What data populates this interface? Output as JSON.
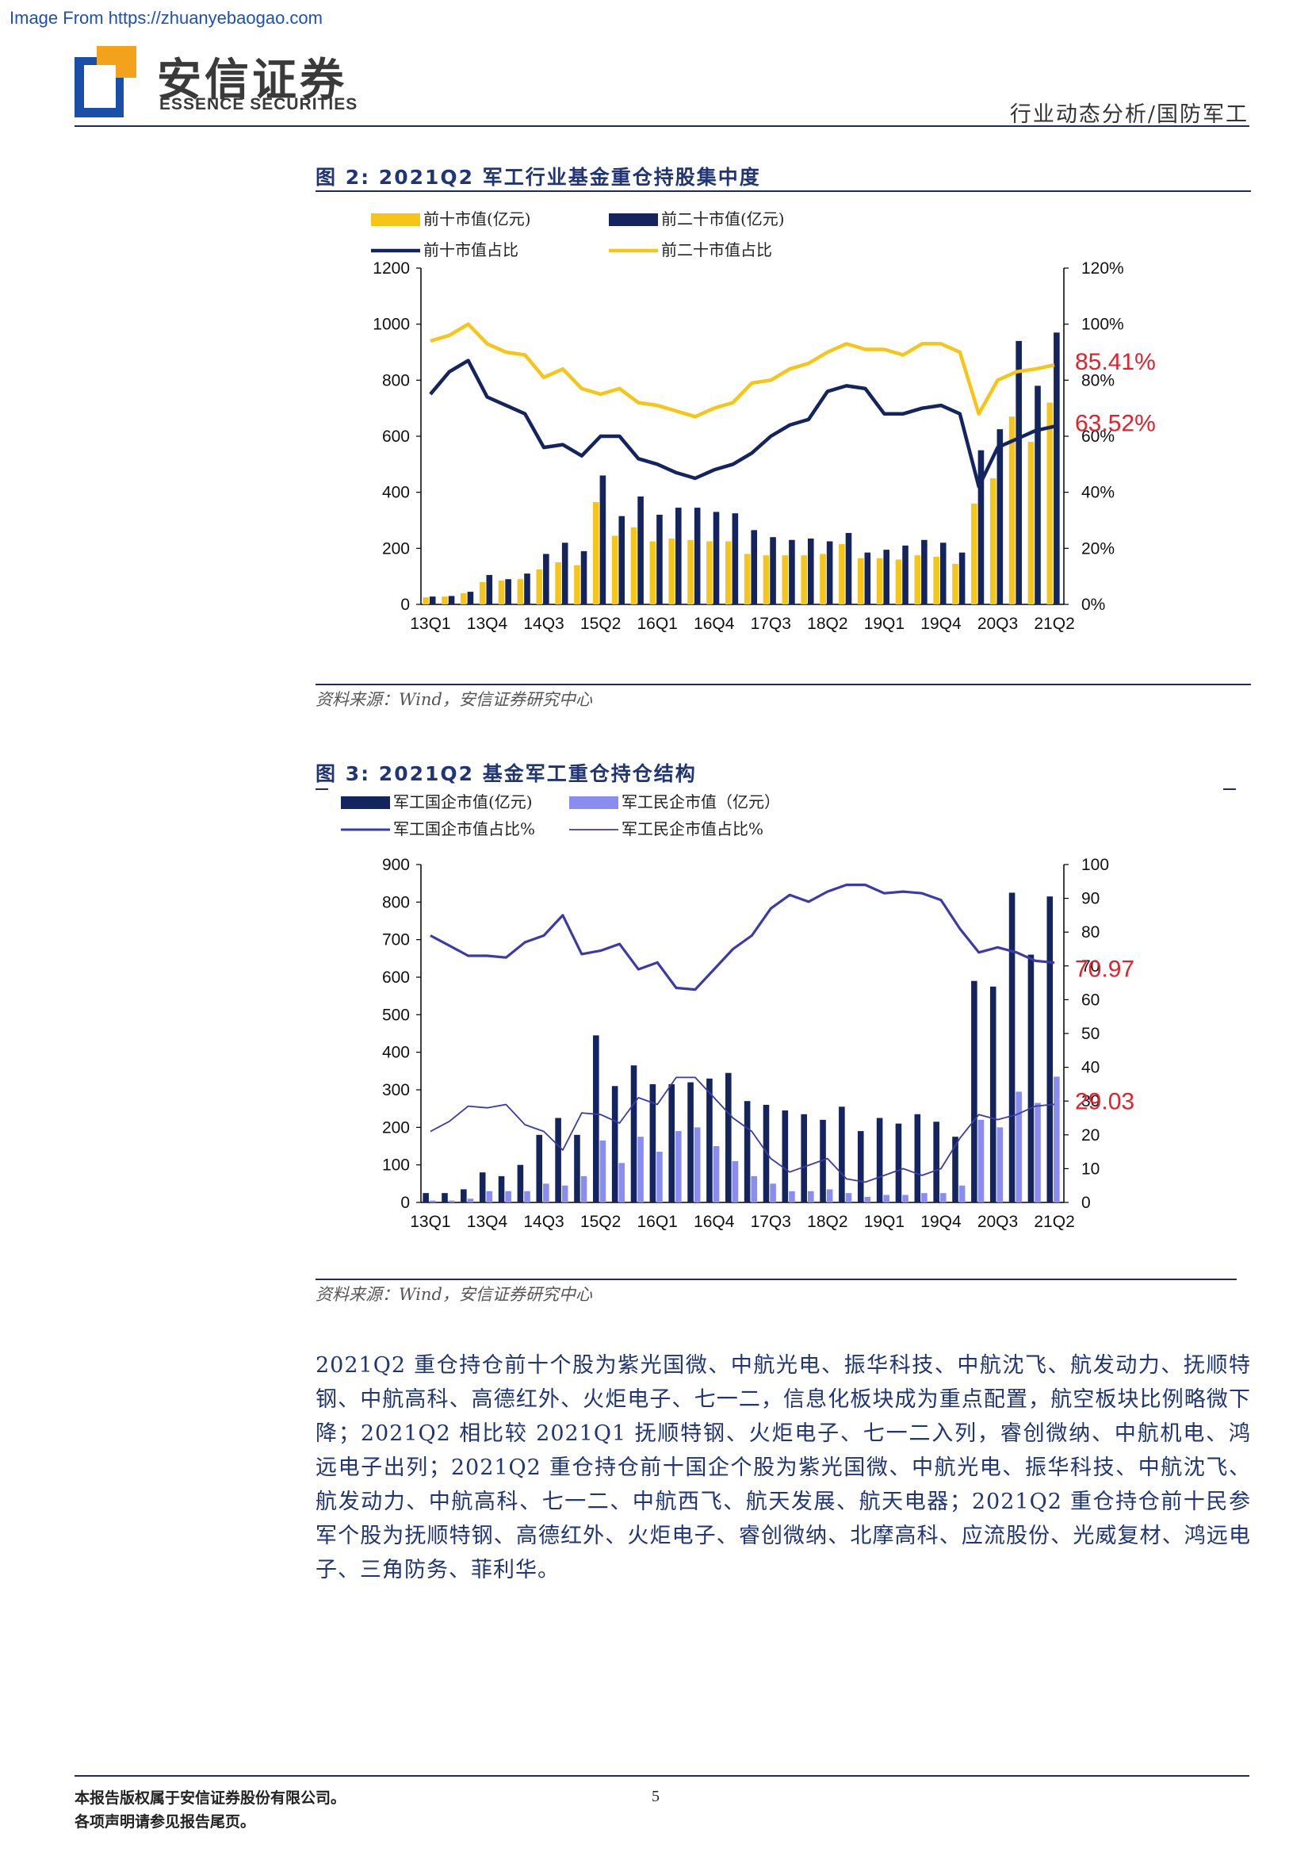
{
  "watermark": "Image From https://zhuanyebaogao.com",
  "header": {
    "logo_cn": "安信证券",
    "logo_en": "ESSENCE SECURITIES",
    "section": "行业动态分析/国防军工",
    "colors": {
      "logo_blue": "#1a4fa8",
      "logo_orange": "#f3a21b"
    }
  },
  "fig2": {
    "title": "图 2:  2021Q2 军工行业基金重仓持股集中度",
    "source": "资料来源：Wind，安信证券研究中心"
  },
  "fig3": {
    "title": "图 3:  2021Q2 基金军工重仓持仓结构",
    "source": "资料来源：Wind，安信证券研究中心"
  },
  "body": {
    "paragraph": "2021Q2 重仓持仓前十个股为紫光国微、中航光电、振华科技、中航沈飞、航发动力、抚顺特钢、中航高科、高德红外、火炬电子、七一二，信息化板块成为重点配置，航空板块比例略微下降；2021Q2 相比较 2021Q1 抚顺特钢、火炬电子、七一二入列，睿创微纳、中航机电、鸿远电子出列；2021Q2 重仓持仓前十国企个股为紫光国微、中航光电、振华科技、中航沈飞、航发动力、中航高科、七一二、中航西飞、航天发展、航天电器；2021Q2 重仓持仓前十民参军个股为抚顺特钢、高德红外、火炬电子、睿创微纳、北摩高科、应流股份、光威复材、鸿远电子、三角防务、菲利华。"
  },
  "footer": {
    "left_line1": "本报告版权属于安信证券股份有限公司。",
    "left_line2": "各项声明请参见报告尾页。",
    "page": "5"
  },
  "chart_data": [
    {
      "type": "bar",
      "id": "fig2",
      "quarters": [
        "13Q1",
        "13Q2",
        "13Q3",
        "13Q4",
        "14Q1",
        "14Q2",
        "14Q3",
        "14Q4",
        "15Q1",
        "15Q2",
        "15Q3",
        "15Q4",
        "16Q1",
        "16Q2",
        "16Q3",
        "16Q4",
        "17Q1",
        "17Q2",
        "17Q3",
        "17Q4",
        "18Q1",
        "18Q2",
        "18Q3",
        "18Q4",
        "19Q1",
        "19Q2",
        "19Q3",
        "19Q4",
        "20Q1",
        "20Q2",
        "20Q3",
        "20Q4",
        "21Q1",
        "21Q2"
      ],
      "tick_labels": [
        "13Q1",
        "13Q4",
        "14Q3",
        "15Q2",
        "16Q1",
        "16Q4",
        "17Q3",
        "18Q2",
        "19Q1",
        "19Q4",
        "20Q3",
        "21Q2"
      ],
      "tick_index": [
        0,
        3,
        6,
        9,
        12,
        15,
        18,
        21,
        24,
        27,
        30,
        33
      ],
      "y_left": {
        "min": 0,
        "max": 1200,
        "ticks": [
          "0",
          "200",
          "400",
          "600",
          "800",
          "1000",
          "1200"
        ]
      },
      "y_right": {
        "min": 0,
        "max": 120,
        "ticks": [
          "0%",
          "20%",
          "40%",
          "60%",
          "80%",
          "100%",
          "120%"
        ]
      },
      "series": [
        {
          "name": "前十市值(亿元)",
          "kind": "bar",
          "axis": "left",
          "color": "#f5c518",
          "values": [
            25,
            28,
            40,
            80,
            85,
            90,
            125,
            150,
            140,
            365,
            245,
            275,
            225,
            235,
            230,
            225,
            225,
            180,
            175,
            175,
            175,
            180,
            215,
            165,
            165,
            160,
            175,
            170,
            145,
            360,
            450,
            670,
            580,
            720
          ]
        },
        {
          "name": "前二十市值(亿元)",
          "kind": "bar",
          "axis": "left",
          "color": "#14245e",
          "values": [
            28,
            30,
            45,
            105,
            90,
            110,
            180,
            220,
            190,
            460,
            315,
            385,
            320,
            345,
            345,
            330,
            325,
            265,
            240,
            230,
            235,
            225,
            255,
            185,
            195,
            210,
            230,
            220,
            185,
            550,
            625,
            940,
            780,
            970
          ]
        },
        {
          "name": "前十市值占比",
          "kind": "line",
          "axis": "right",
          "color": "#14245e",
          "values": [
            75,
            83,
            87,
            74,
            71,
            68,
            56,
            57,
            53,
            60,
            60,
            52,
            50,
            47,
            45,
            48,
            50,
            54,
            60,
            64,
            66,
            76,
            78,
            77,
            68,
            68,
            70,
            71,
            68,
            42,
            56,
            59,
            62,
            63.52
          ]
        },
        {
          "name": "前二十市值占比",
          "kind": "line",
          "axis": "right",
          "color": "#f5c518",
          "values": [
            94,
            96,
            100,
            93,
            90,
            89,
            81,
            84,
            77,
            75,
            77,
            72,
            71,
            69,
            67,
            70,
            72,
            79,
            80,
            84,
            86,
            90,
            93,
            91,
            91,
            89,
            93,
            93,
            90,
            68,
            80,
            83,
            84,
            85.41
          ]
        }
      ],
      "annotations": [
        "85.41%",
        "63.52%"
      ],
      "legend": "top"
    },
    {
      "type": "bar",
      "id": "fig3",
      "quarters": [
        "13Q1",
        "13Q2",
        "13Q3",
        "13Q4",
        "14Q1",
        "14Q2",
        "14Q3",
        "14Q4",
        "15Q1",
        "15Q2",
        "15Q3",
        "15Q4",
        "16Q1",
        "16Q2",
        "16Q3",
        "16Q4",
        "17Q1",
        "17Q2",
        "17Q3",
        "17Q4",
        "18Q1",
        "18Q2",
        "18Q3",
        "18Q4",
        "19Q1",
        "19Q2",
        "19Q3",
        "19Q4",
        "20Q1",
        "20Q2",
        "20Q3",
        "20Q4",
        "21Q1",
        "21Q2"
      ],
      "tick_labels": [
        "13Q1",
        "13Q4",
        "14Q3",
        "15Q2",
        "16Q1",
        "16Q4",
        "17Q3",
        "18Q2",
        "19Q1",
        "19Q4",
        "20Q3",
        "21Q2"
      ],
      "tick_index": [
        0,
        3,
        6,
        9,
        12,
        15,
        18,
        21,
        24,
        27,
        30,
        33
      ],
      "y_left": {
        "min": 0,
        "max": 900,
        "ticks": [
          "0",
          "100",
          "200",
          "300",
          "400",
          "500",
          "600",
          "700",
          "800",
          "900"
        ]
      },
      "y_right": {
        "min": 0,
        "max": 100,
        "ticks": [
          "0",
          "10",
          "20",
          "30",
          "40",
          "50",
          "60",
          "70",
          "80",
          "90",
          "100"
        ]
      },
      "series": [
        {
          "name": "军工国企市值(亿元)",
          "kind": "bar",
          "axis": "left",
          "color": "#14245e",
          "values": [
            25,
            25,
            35,
            80,
            70,
            100,
            180,
            225,
            180,
            445,
            310,
            365,
            315,
            315,
            320,
            330,
            345,
            270,
            260,
            245,
            235,
            220,
            255,
            190,
            225,
            210,
            235,
            215,
            175,
            590,
            575,
            825,
            660,
            815
          ]
        },
        {
          "name": "军工民企市值（亿元）",
          "kind": "bar",
          "axis": "left",
          "color": "#8a8cf0",
          "values": [
            5,
            5,
            10,
            30,
            30,
            30,
            50,
            45,
            70,
            165,
            105,
            175,
            135,
            190,
            200,
            150,
            110,
            70,
            50,
            30,
            30,
            35,
            25,
            15,
            20,
            20,
            25,
            25,
            45,
            220,
            200,
            295,
            265,
            335
          ]
        },
        {
          "name": "军工国企市值占比%",
          "kind": "line",
          "axis": "right",
          "color": "#3b3aa8",
          "values": [
            79,
            76,
            73,
            73,
            72.5,
            77,
            79,
            85,
            73.5,
            74.5,
            76.5,
            69,
            71,
            63.5,
            63,
            69,
            75,
            79,
            87,
            91,
            89,
            92,
            94,
            94,
            91.5,
            92,
            91.5,
            89.5,
            81,
            74,
            75.5,
            74,
            71.5,
            70.97
          ]
        },
        {
          "name": "军工民企市值占比%",
          "kind": "line",
          "axis": "right",
          "color": "#3b3aa8",
          "values": [
            21,
            24,
            28.5,
            28,
            29,
            23,
            21,
            15.5,
            26.5,
            26,
            23.5,
            31,
            29,
            37,
            37,
            31,
            25,
            21,
            13,
            9,
            11,
            13,
            7,
            6,
            8,
            10,
            8,
            10,
            19,
            26,
            24.5,
            26,
            28.5,
            29.03
          ]
        }
      ],
      "annotations": [
        "70.97",
        "29.03"
      ],
      "legend": "top"
    }
  ]
}
